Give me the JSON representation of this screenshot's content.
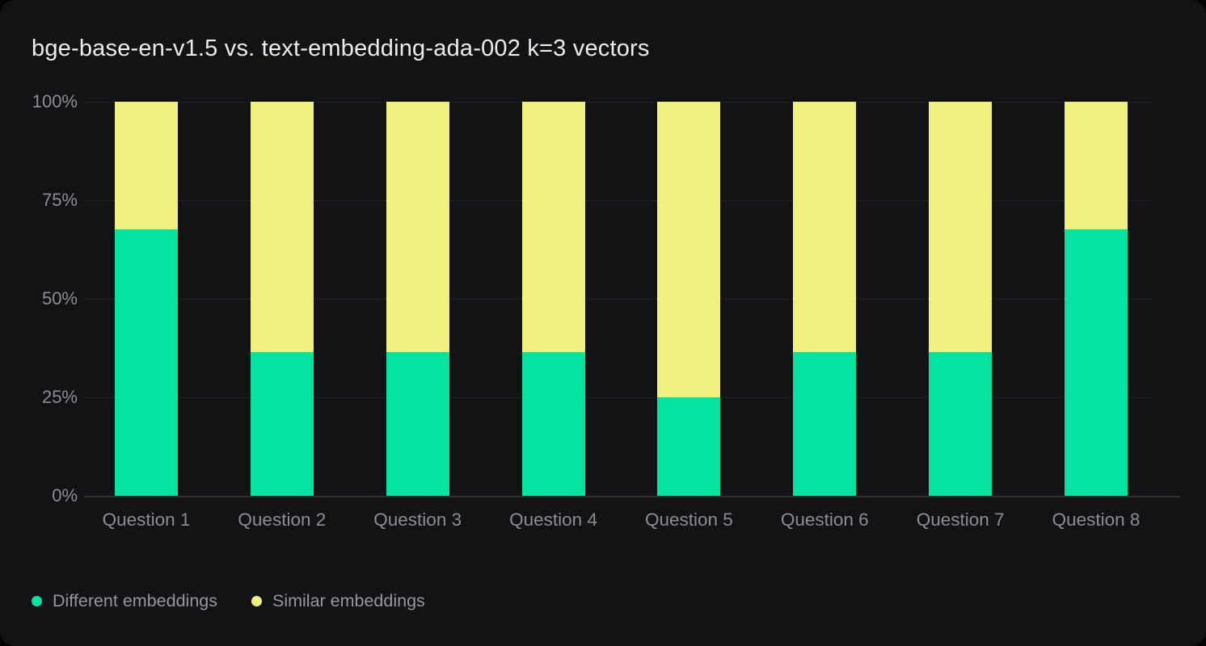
{
  "chart_data": {
    "type": "bar",
    "stacked": true,
    "orientation": "vertical",
    "title": "bge-base-en-v1.5 vs. text-embedding-ada-002 k=3 vectors",
    "categories": [
      "Question 1",
      "Question 2",
      "Question 3",
      "Question 4",
      "Question 5",
      "Question 6",
      "Question 7",
      "Question 8"
    ],
    "series": [
      {
        "name": "Different embeddings",
        "color": "#06e2a0",
        "values": [
          67.6,
          36.4,
          36.4,
          36.4,
          25,
          36.4,
          36.4,
          67.6
        ]
      },
      {
        "name": "Similar embeddings",
        "color": "#eef17d",
        "values": [
          32.4,
          63.6,
          63.6,
          63.6,
          75,
          63.6,
          63.6,
          32.4
        ]
      }
    ],
    "y_ticks": [
      {
        "label": "100%",
        "value": 100
      },
      {
        "label": "75%",
        "value": 75
      },
      {
        "label": "50%",
        "value": 50
      },
      {
        "label": "25%",
        "value": 25
      },
      {
        "label": "0%",
        "value": 0
      }
    ],
    "ylim": [
      0,
      100
    ],
    "grid": true,
    "legend_position": "bottom-left",
    "theme": {
      "page_bg": "#030303",
      "card_bg": "#121314",
      "grid_color": "#202124",
      "axis_color": "#2e2f32",
      "tick_label_color": "#8c8d92",
      "title_color": "#ececef",
      "legend_label_color": "#96979c"
    }
  }
}
